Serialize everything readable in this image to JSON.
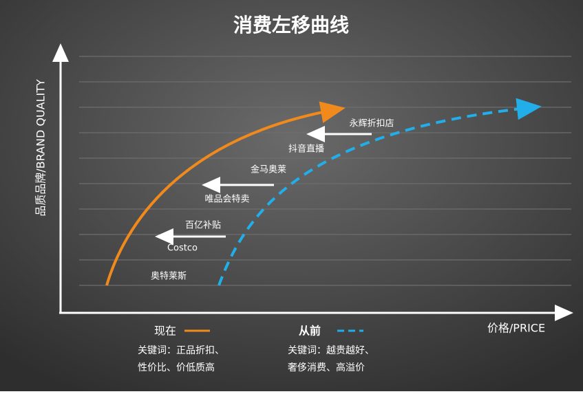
{
  "title": "消费左移曲线",
  "axes": {
    "y_label": "品质品牌/BRAND QUALITY",
    "x_label": "价格/PRICE"
  },
  "labels": [
    "永辉折扣店",
    "抖音直播",
    "金马奥莱",
    "唯品会特卖",
    "百亿补贴",
    "Costco",
    "奥特莱斯"
  ],
  "legend": [
    {
      "name": "现在",
      "keywords": [
        "关键词：正品折扣、",
        "性价比、价低质高"
      ]
    },
    {
      "name": "从前",
      "keywords": [
        "关键词：越贵越好、",
        "奢侈消费、高溢价"
      ]
    }
  ]
}
